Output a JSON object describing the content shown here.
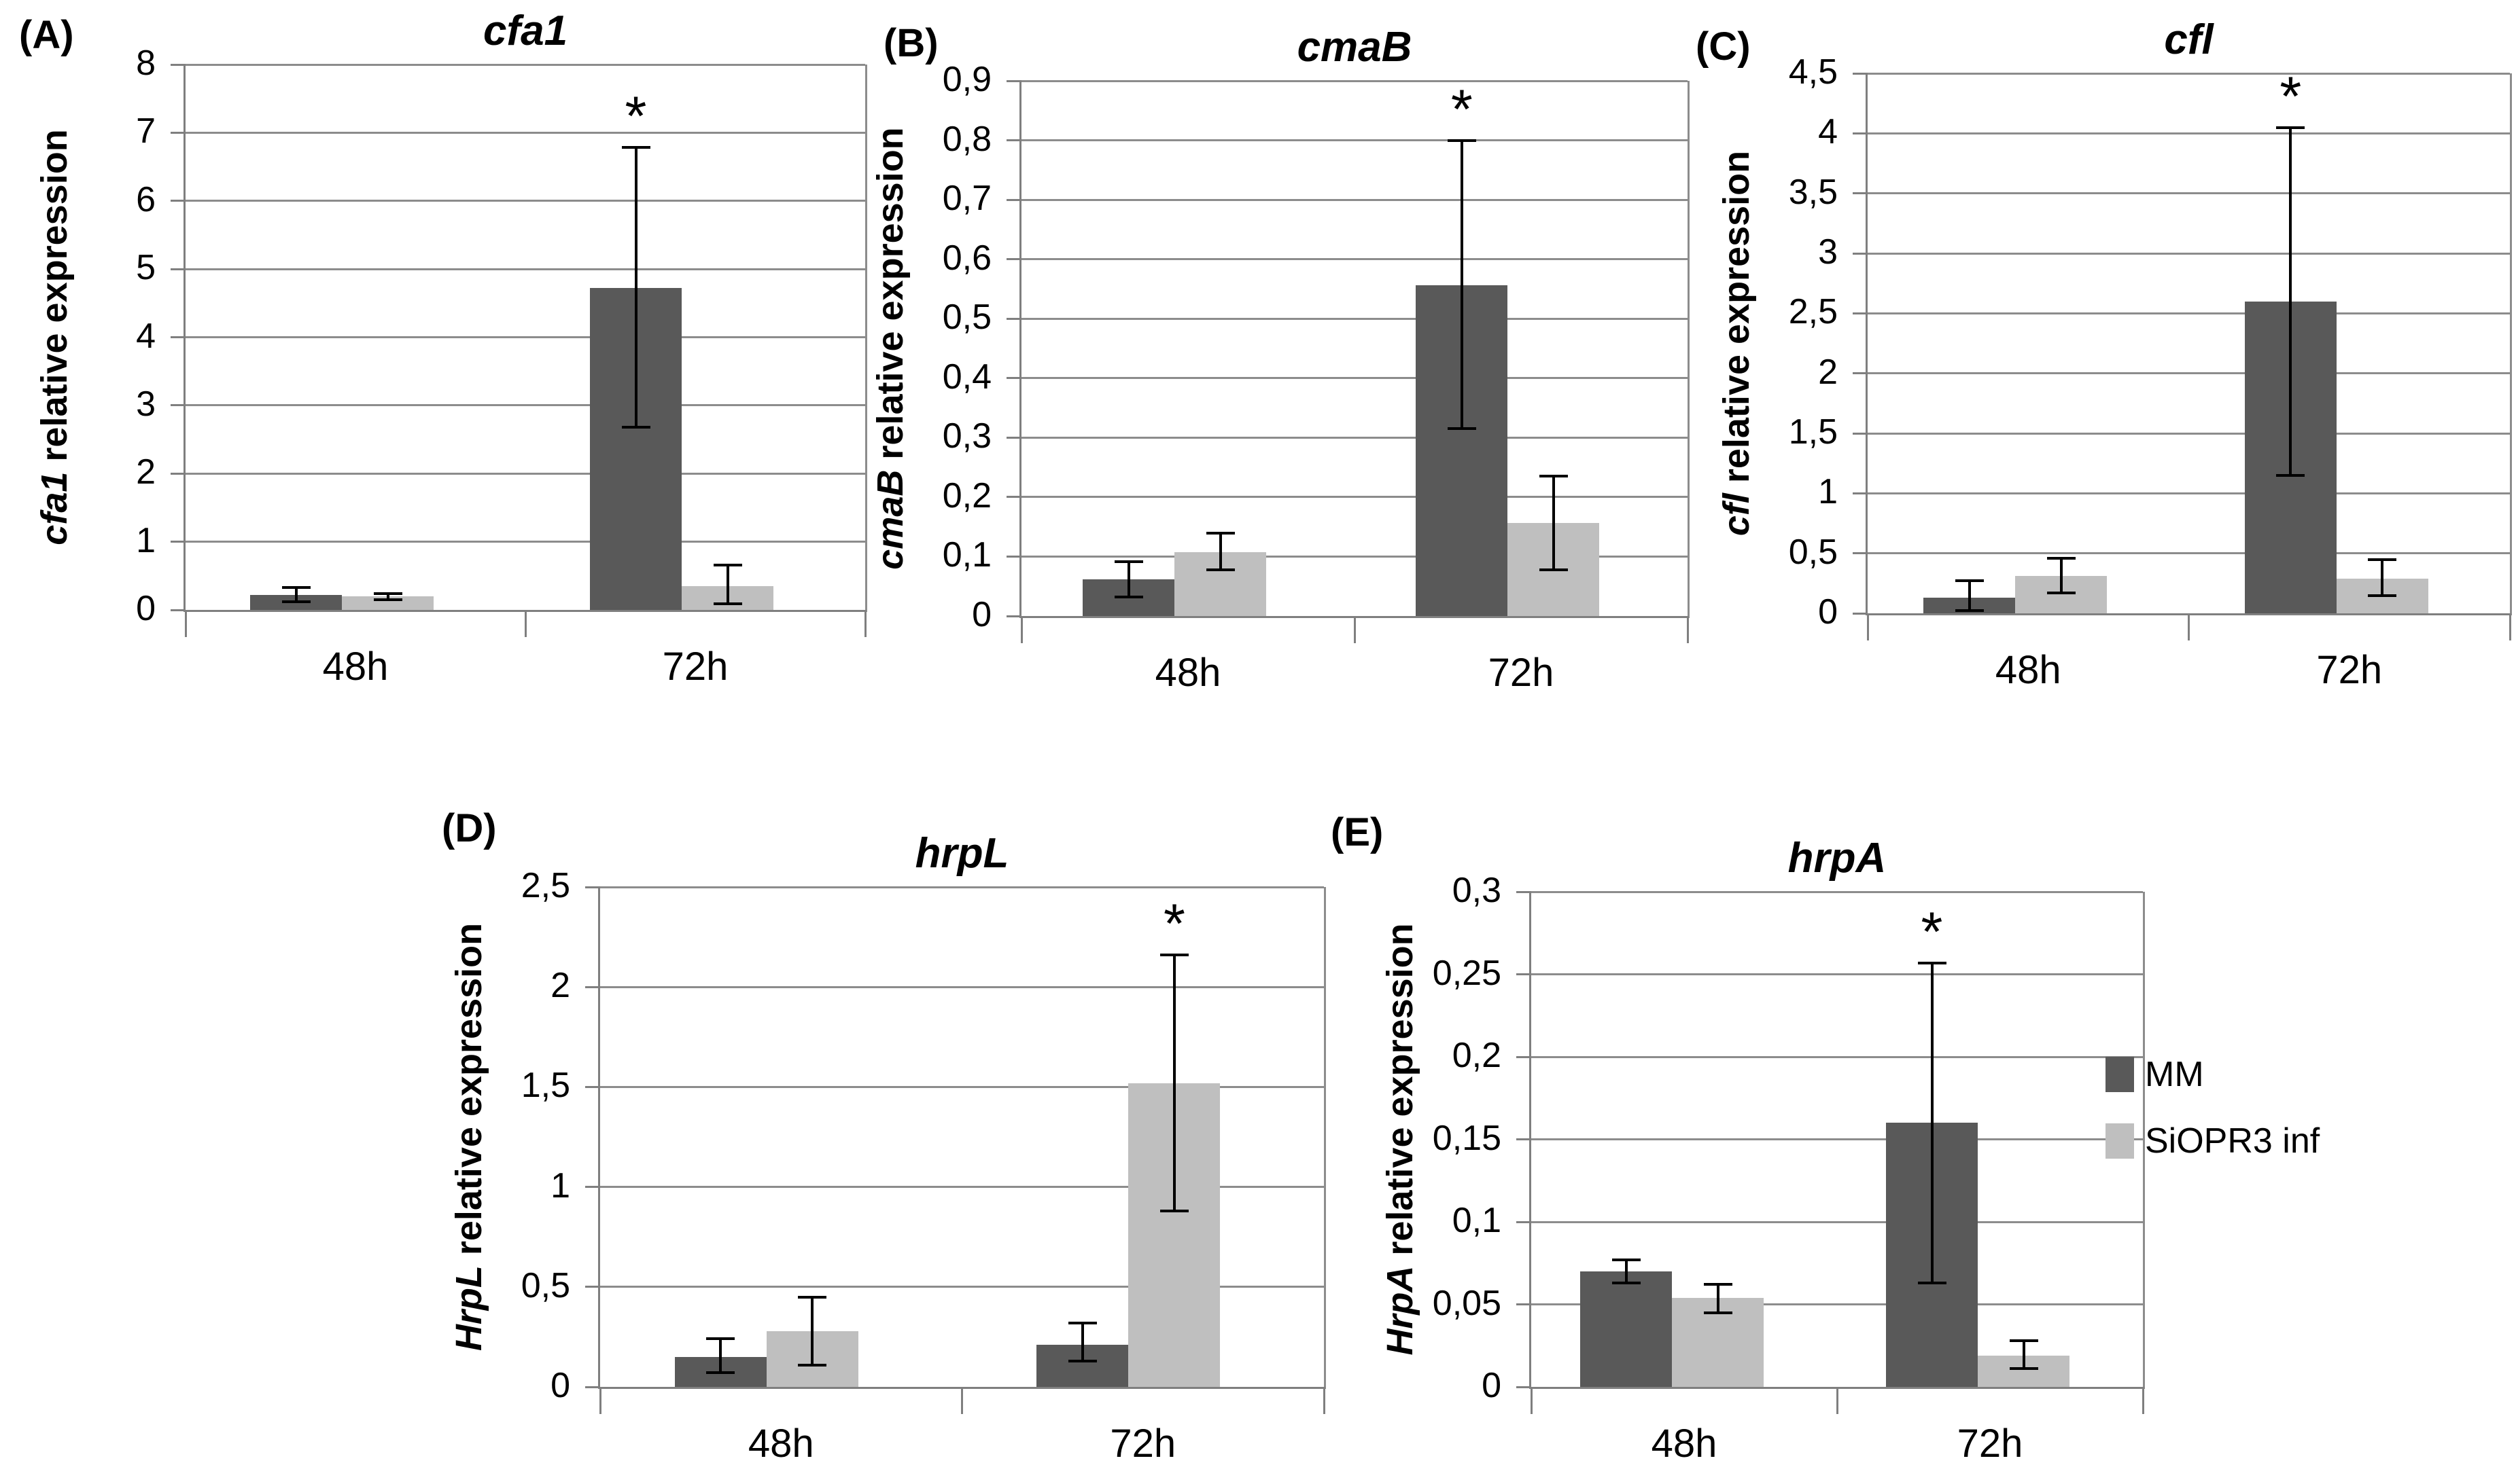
{
  "figure": {
    "background": "#ffffff",
    "grid_color": "#8c8c8c",
    "axis_color": "#7f7f7f",
    "bar_dark_color": "#595959",
    "bar_light_color": "#bfbfbf",
    "error_bar_color": "#000000",
    "significance_marker": "*"
  },
  "legend": {
    "items": [
      {
        "label": "MM",
        "color": "#595959"
      },
      {
        "label": "SiOPR3 inf",
        "color": "#bfbfbf"
      }
    ]
  },
  "chart_data": [
    {
      "type": "bar",
      "panel_label": "(A)",
      "title": "cfa1",
      "ylabel_gene": "cfa1",
      "ylabel_rest": " relative expression",
      "categories": [
        "48h",
        "72h"
      ],
      "ylim": [
        0,
        8
      ],
      "ytick_labels": [
        "0",
        "1",
        "2",
        "3",
        "4",
        "5",
        "6",
        "7",
        "8"
      ],
      "grid": true,
      "series": [
        {
          "name": "MM",
          "color": "#595959",
          "values": [
            0.22,
            4.72
          ],
          "err_low": [
            0.12,
            2.68
          ],
          "err_high": [
            0.33,
            6.78
          ]
        },
        {
          "name": "SiOPR3 inf",
          "color": "#bfbfbf",
          "values": [
            0.2,
            0.35
          ],
          "err_low": [
            0.15,
            0.09
          ],
          "err_high": [
            0.24,
            0.66
          ]
        }
      ],
      "star": {
        "category_index": 1,
        "series_index": 0
      }
    },
    {
      "type": "bar",
      "panel_label": "(B)",
      "title": "cmaB",
      "ylabel_gene": "cmaB",
      "ylabel_rest": " relative expression",
      "categories": [
        "48h",
        "72h"
      ],
      "ylim": [
        0,
        0.9
      ],
      "ytick_labels": [
        "0",
        "0,1",
        "0,2",
        "0,3",
        "0,4",
        "0,5",
        "0,6",
        "0,7",
        "0,8",
        "0,9"
      ],
      "grid": true,
      "series": [
        {
          "name": "MM",
          "color": "#595959",
          "values": [
            0.062,
            0.556
          ],
          "err_low": [
            0.032,
            0.315
          ],
          "err_high": [
            0.091,
            0.8
          ]
        },
        {
          "name": "SiOPR3 inf",
          "color": "#bfbfbf",
          "values": [
            0.107,
            0.157
          ],
          "err_low": [
            0.078,
            0.078
          ],
          "err_high": [
            0.139,
            0.235
          ]
        }
      ],
      "star": {
        "category_index": 1,
        "series_index": 0
      }
    },
    {
      "type": "bar",
      "panel_label": "(C)",
      "title": "cfl",
      "ylabel_gene": "cfl",
      "ylabel_rest": " relative expression",
      "categories": [
        "48h",
        "72h"
      ],
      "ylim": [
        0,
        4.5
      ],
      "ytick_labels": [
        "0",
        "0,5",
        "1",
        "1,5",
        "2",
        "2,5",
        "3",
        "3,5",
        "4",
        "4,5"
      ],
      "grid": true,
      "series": [
        {
          "name": "MM",
          "color": "#595959",
          "values": [
            0.13,
            2.6
          ],
          "err_low": [
            0.02,
            1.15
          ],
          "err_high": [
            0.27,
            4.05
          ]
        },
        {
          "name": "SiOPR3 inf",
          "color": "#bfbfbf",
          "values": [
            0.31,
            0.29
          ],
          "err_low": [
            0.17,
            0.15
          ],
          "err_high": [
            0.46,
            0.45
          ]
        }
      ],
      "star": {
        "category_index": 1,
        "series_index": 0
      }
    },
    {
      "type": "bar",
      "panel_label": "(D)",
      "title": "hrpL",
      "ylabel_gene": "HrpL",
      "ylabel_rest": " relative expression",
      "categories": [
        "48h",
        "72h"
      ],
      "ylim": [
        0,
        2.5
      ],
      "ytick_labels": [
        "0",
        "0,5",
        "1",
        "1,5",
        "2",
        "2,5"
      ],
      "grid": true,
      "series": [
        {
          "name": "MM",
          "color": "#595959",
          "values": [
            0.15,
            0.21
          ],
          "err_low": [
            0.07,
            0.13
          ],
          "err_high": [
            0.24,
            0.32
          ]
        },
        {
          "name": "SiOPR3 inf",
          "color": "#bfbfbf",
          "values": [
            0.28,
            1.52
          ],
          "err_low": [
            0.11,
            0.88
          ],
          "err_high": [
            0.45,
            2.16
          ]
        }
      ],
      "star": {
        "category_index": 1,
        "series_index": 1
      }
    },
    {
      "type": "bar",
      "panel_label": "(E)",
      "title": "hrpA",
      "ylabel_gene": "HrpA",
      "ylabel_rest": " relative expression",
      "categories": [
        "48h",
        "72h"
      ],
      "ylim": [
        0,
        0.3
      ],
      "ytick_labels": [
        "0",
        "0,05",
        "0,1",
        "0,15",
        "0,2",
        "0,25",
        "0,3"
      ],
      "grid": true,
      "series": [
        {
          "name": "MM",
          "color": "#595959",
          "values": [
            0.07,
            0.16
          ],
          "err_low": [
            0.063,
            0.063
          ],
          "err_high": [
            0.077,
            0.257
          ]
        },
        {
          "name": "SiOPR3 inf",
          "color": "#bfbfbf",
          "values": [
            0.054,
            0.019
          ],
          "err_low": [
            0.045,
            0.011
          ],
          "err_high": [
            0.062,
            0.028
          ]
        }
      ],
      "star": {
        "category_index": 1,
        "series_index": 0
      }
    }
  ]
}
